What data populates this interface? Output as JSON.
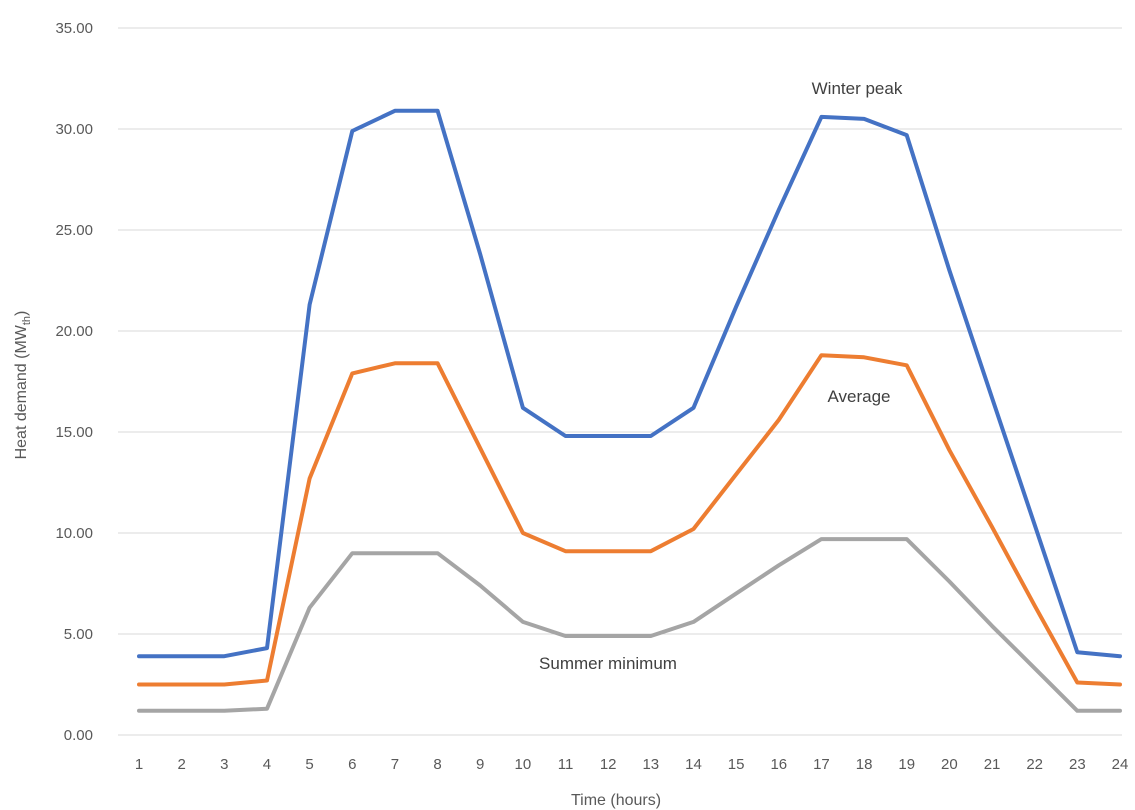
{
  "chart_data": {
    "type": "line",
    "xlabel": "Time (hours)",
    "ylabel": "Heat demand (MW",
    "ylabel_sub": "th",
    "ylabel_end": ")",
    "ylim": [
      0,
      35
    ],
    "yticks": [
      "0.00",
      "5.00",
      "10.00",
      "15.00",
      "20.00",
      "25.00",
      "30.00",
      "35.00"
    ],
    "x": [
      1,
      2,
      3,
      4,
      5,
      6,
      7,
      8,
      9,
      10,
      11,
      12,
      13,
      14,
      15,
      16,
      17,
      18,
      19,
      20,
      21,
      22,
      23,
      24
    ],
    "grid": true,
    "series": [
      {
        "name": "Winter peak",
        "color": "#4472c4",
        "values": [
          3.9,
          3.9,
          3.9,
          4.3,
          21.3,
          29.9,
          30.9,
          30.9,
          23.8,
          16.2,
          14.8,
          14.8,
          14.8,
          16.2,
          21.2,
          26.0,
          30.6,
          30.5,
          29.7,
          23.0,
          16.7,
          10.4,
          4.1,
          3.9
        ]
      },
      {
        "name": "Average",
        "color": "#ed7d31",
        "values": [
          2.5,
          2.5,
          2.5,
          2.7,
          12.7,
          17.9,
          18.4,
          18.4,
          14.2,
          10.0,
          9.1,
          9.1,
          9.1,
          10.2,
          12.9,
          15.6,
          18.8,
          18.7,
          18.3,
          14.1,
          10.3,
          6.4,
          2.6,
          2.5
        ]
      },
      {
        "name": "Summer minimum",
        "color": "#a5a5a5",
        "values": [
          1.2,
          1.2,
          1.2,
          1.3,
          6.3,
          9.0,
          9.0,
          9.0,
          7.4,
          5.6,
          4.9,
          4.9,
          4.9,
          5.6,
          7.0,
          8.4,
          9.7,
          9.7,
          9.7,
          7.6,
          5.4,
          3.3,
          1.2,
          1.2
        ]
      }
    ]
  }
}
